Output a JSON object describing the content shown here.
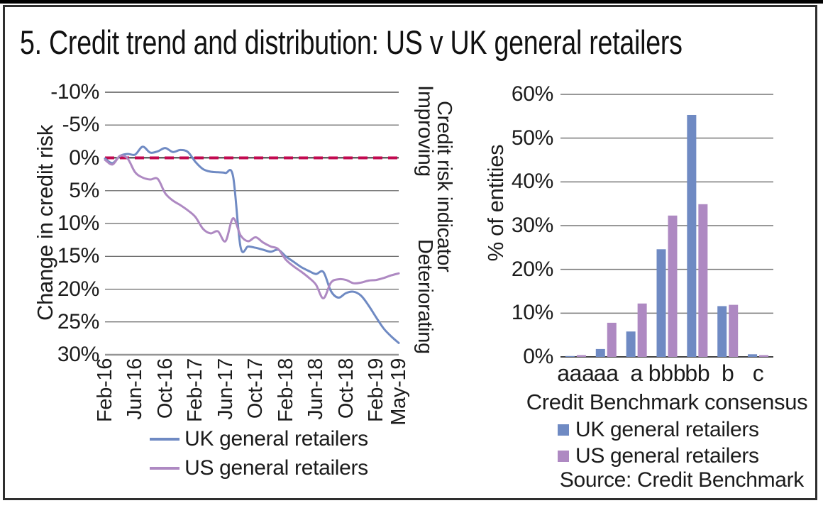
{
  "title": "5. Credit trend and distribution: US v UK general retailers",
  "source": "Source: Credit Benchmark",
  "colors": {
    "uk": "#6f8ac3",
    "us": "#ae89c2",
    "reference_line": "#c20a50",
    "grid": "#808080",
    "text": "#1c1c1c"
  },
  "chart_data": [
    {
      "type": "line",
      "ylabel": "Change in credit risk",
      "y_axis_reversed": true,
      "ylim": [
        -10,
        30
      ],
      "y_ticks": [
        "-10%",
        "-5%",
        "0%",
        "5%",
        "10%",
        "15%",
        "20%",
        "25%",
        "30%"
      ],
      "right_axis": {
        "title": "Credit risk indicator",
        "top": "Improving",
        "bottom": "Deteriorating"
      },
      "reference_line": {
        "value": 0,
        "style": "dashed",
        "color": "#c20a50"
      },
      "x": [
        "Feb-16",
        "Mar-16",
        "Apr-16",
        "May-16",
        "Jun-16",
        "Jul-16",
        "Aug-16",
        "Sep-16",
        "Oct-16",
        "Nov-16",
        "Dec-16",
        "Jan-17",
        "Feb-17",
        "Mar-17",
        "Apr-17",
        "May-17",
        "Jun-17",
        "Jul-17",
        "Aug-17",
        "Sep-17",
        "Oct-17",
        "Nov-17",
        "Dec-17",
        "Jan-18",
        "Feb-18",
        "Mar-18",
        "Apr-18",
        "May-18",
        "Jun-18",
        "Jul-18",
        "Aug-18",
        "Sep-18",
        "Oct-18",
        "Nov-18",
        "Dec-18",
        "Jan-19",
        "Feb-19",
        "Mar-19",
        "Apr-19",
        "May-19"
      ],
      "x_ticks": [
        "Feb-16",
        "Jun-16",
        "Oct-16",
        "Feb-17",
        "Jun-17",
        "Oct-17",
        "Feb-18",
        "Jun-18",
        "Oct-18",
        "Feb-19",
        "May-19"
      ],
      "series": [
        {
          "name": "UK general retailers",
          "color": "#6f8ac3",
          "values": [
            0.1,
            0.8,
            -0.3,
            -0.6,
            -0.5,
            -1.7,
            -0.8,
            -1.0,
            -1.5,
            -0.9,
            -1.2,
            -0.9,
            0.6,
            1.7,
            2.1,
            2.2,
            2.3,
            2.8,
            13.6,
            13.5,
            13.7,
            14.0,
            14.3,
            14.0,
            15.0,
            15.8,
            16.6,
            17.2,
            17.7,
            17.4,
            20.3,
            21.3,
            20.6,
            20.4,
            21.0,
            22.5,
            24.3,
            26.0,
            27.2,
            28.2
          ]
        },
        {
          "name": "US general retailers",
          "color": "#ae89c2",
          "values": [
            0.3,
            1.0,
            -0.3,
            0.1,
            2.2,
            3.0,
            3.3,
            3.2,
            5.4,
            6.5,
            7.2,
            8.0,
            9.0,
            10.8,
            11.5,
            11.2,
            12.7,
            9.2,
            11.8,
            12.7,
            12.1,
            12.9,
            13.5,
            13.9,
            15.5,
            16.5,
            17.3,
            18.2,
            19.3,
            21.4,
            19.0,
            18.5,
            18.6,
            19.1,
            19.0,
            18.7,
            18.6,
            18.3,
            17.9,
            17.6
          ]
        }
      ],
      "legend_position": "bottom",
      "grid": true
    },
    {
      "type": "bar",
      "ylabel": "% of entities",
      "xlabel": "Credit Benchmark consensus",
      "ylim": [
        0,
        60
      ],
      "y_ticks": [
        "0%",
        "10%",
        "20%",
        "30%",
        "40%",
        "50%",
        "60%"
      ],
      "categories": [
        "aaa",
        "aa",
        "a",
        "bbb",
        "bb",
        "b",
        "c"
      ],
      "series": [
        {
          "name": "UK general retailers",
          "color": "#6f8ac3",
          "values": [
            0.2,
            1.8,
            5.8,
            24.6,
            55.3,
            11.6,
            0.6
          ]
        },
        {
          "name": "US general retailers",
          "color": "#ae89c2",
          "values": [
            0.4,
            7.8,
            12.2,
            32.3,
            34.9,
            11.9,
            0.4
          ]
        }
      ],
      "legend_position": "bottom",
      "grid": true
    }
  ]
}
